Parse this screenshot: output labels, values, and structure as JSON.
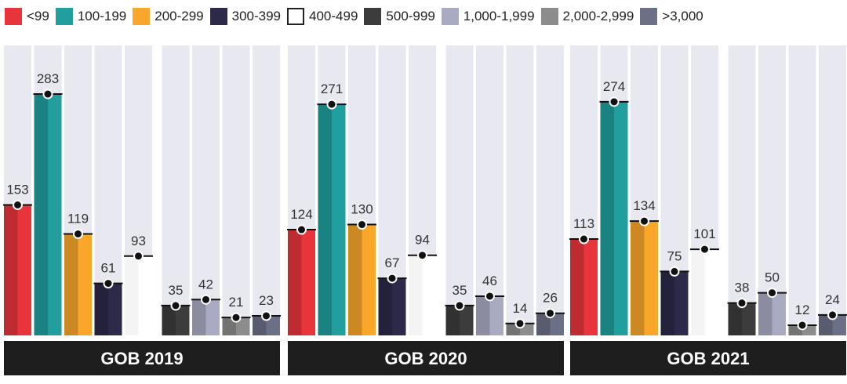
{
  "chart_data": {
    "type": "bar",
    "categories": [
      "<99",
      "100-199",
      "200-299",
      "300-399",
      "400-499",
      "500-999",
      "1,000-1,999",
      "2,000-2,999",
      ">3,000"
    ],
    "colors": [
      "#e8353c",
      "#219e9e",
      "#f9a72b",
      "#2c2a48",
      "#ffffff",
      "#3c3c3c",
      "#a9abc2",
      "#8c8c8c",
      "#6c7086"
    ],
    "panels": [
      {
        "label": "GOB 2019",
        "values": [
          153,
          283,
          119,
          61,
          93,
          35,
          42,
          21,
          23
        ]
      },
      {
        "label": "GOB 2020",
        "values": [
          124,
          271,
          130,
          67,
          94,
          35,
          46,
          14,
          26
        ]
      },
      {
        "label": "GOB 2021",
        "values": [
          113,
          274,
          134,
          75,
          101,
          38,
          50,
          12,
          24
        ]
      }
    ],
    "ylim": [
      0,
      340
    ],
    "legend_position": "top",
    "grid": false,
    "column_background": "#e8e8f0",
    "title_bar_color": "#1e1e1e"
  }
}
